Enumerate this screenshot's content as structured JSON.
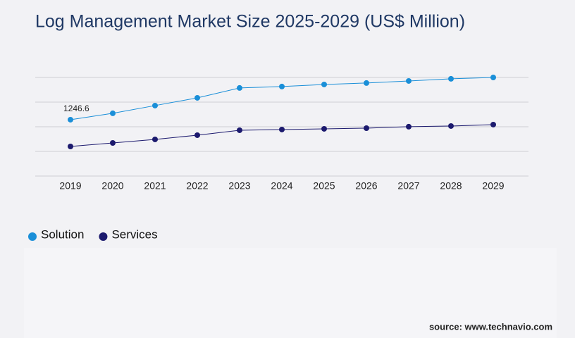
{
  "chart_data": {
    "type": "line",
    "title": "Log Management Market Size 2025-2029 (US$ Million)",
    "categories": [
      "2019",
      "2020",
      "2021",
      "2022",
      "2023",
      "2024",
      "2025",
      "2026",
      "2027",
      "2028",
      "2029"
    ],
    "series": [
      {
        "name": "Solution",
        "color": "#1a8fd8",
        "values": [
          1246.6,
          1387,
          1558,
          1729,
          1948,
          1979,
          2025,
          2057,
          2103,
          2150,
          2180
        ],
        "label_indices": [
          0
        ]
      },
      {
        "name": "Services",
        "color": "#1c1a6e",
        "values": [
          654,
          732,
          810,
          904,
          1013,
          1028,
          1044,
          1059,
          1091,
          1106,
          1137
        ]
      }
    ],
    "ylim": [
      0,
      2180
    ],
    "yticks": [
      0,
      545,
      1090,
      1635,
      2180
    ],
    "grid": true,
    "legend": "bottom-left",
    "source": "source: www.technavio.com"
  }
}
